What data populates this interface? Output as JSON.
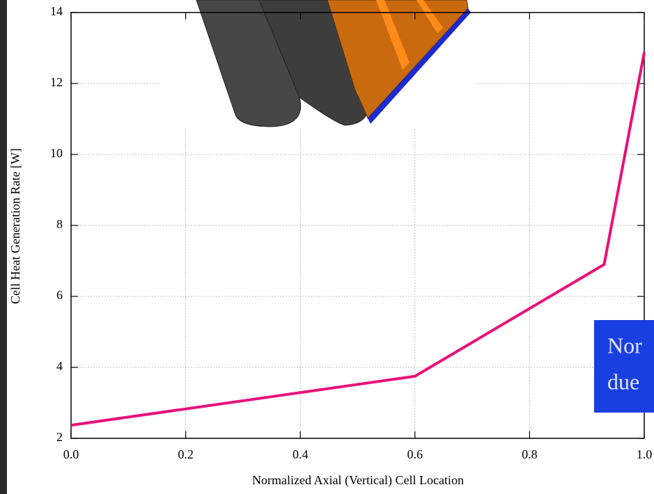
{
  "chart_data": {
    "type": "line",
    "xlabel": "Normalized Axial (Vertical) Cell Location",
    "ylabel": "Cell Heat Generation Rate [W]",
    "x": [
      0,
      0.6,
      0.93,
      1.0
    ],
    "series": [
      {
        "color": "#e8107a",
        "values": [
          2.37,
          3.75,
          6.9,
          12.88
        ]
      }
    ],
    "xlim": [
      0,
      1.0
    ],
    "ylim": [
      2,
      14
    ],
    "xticks": [
      {
        "value": 0,
        "label": "0.0"
      },
      0.2,
      0.4,
      0.6,
      0.8,
      {
        "value": 1.0,
        "label": "1.0"
      }
    ],
    "yticks": [
      2,
      4,
      6,
      8,
      10,
      12,
      14
    ],
    "grid": true,
    "annotation": {
      "lines": [
        "Nor",
        "due"
      ],
      "background": "#1a3fe0",
      "color": "#dfe6ff"
    }
  }
}
